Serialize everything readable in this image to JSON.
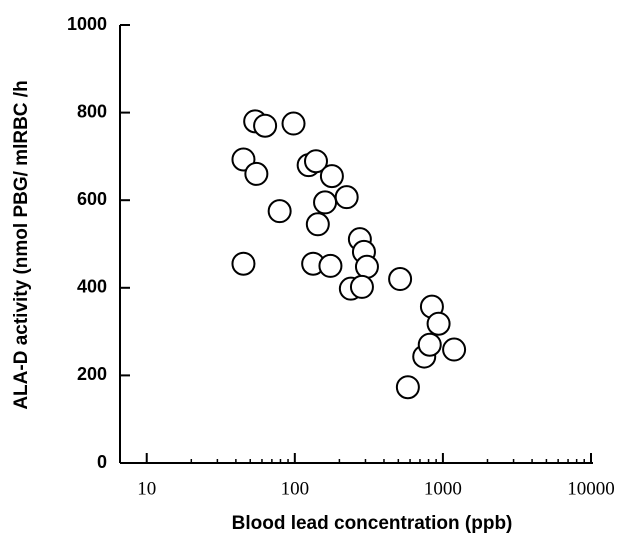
{
  "chart_data": {
    "type": "scatter",
    "xlabel": "Blood lead concentration (ppb)",
    "ylabel": "ALA-D activity (nmol PBG/ mlRBC /h",
    "xscale": "log",
    "xlim": [
      6.6,
      10000
    ],
    "xticks": [
      10,
      100,
      1000,
      10000
    ],
    "ylim": [
      0,
      1000
    ],
    "yticks": [
      0,
      200,
      400,
      600,
      800,
      1000
    ],
    "color": "#000000",
    "x": [
      54,
      63,
      98,
      45,
      55,
      124,
      139,
      178,
      160,
      79,
      224,
      143,
      45,
      133,
      174,
      275,
      293,
      307,
      239,
      284,
      514,
      843,
      935,
      748,
      815,
      1190,
      580
    ],
    "y": [
      780,
      770,
      775,
      693,
      660,
      680,
      689,
      655,
      595,
      575,
      607,
      545,
      455,
      455,
      450,
      511,
      482,
      448,
      398,
      402,
      420,
      357,
      318,
      243,
      270,
      259,
      173
    ]
  }
}
